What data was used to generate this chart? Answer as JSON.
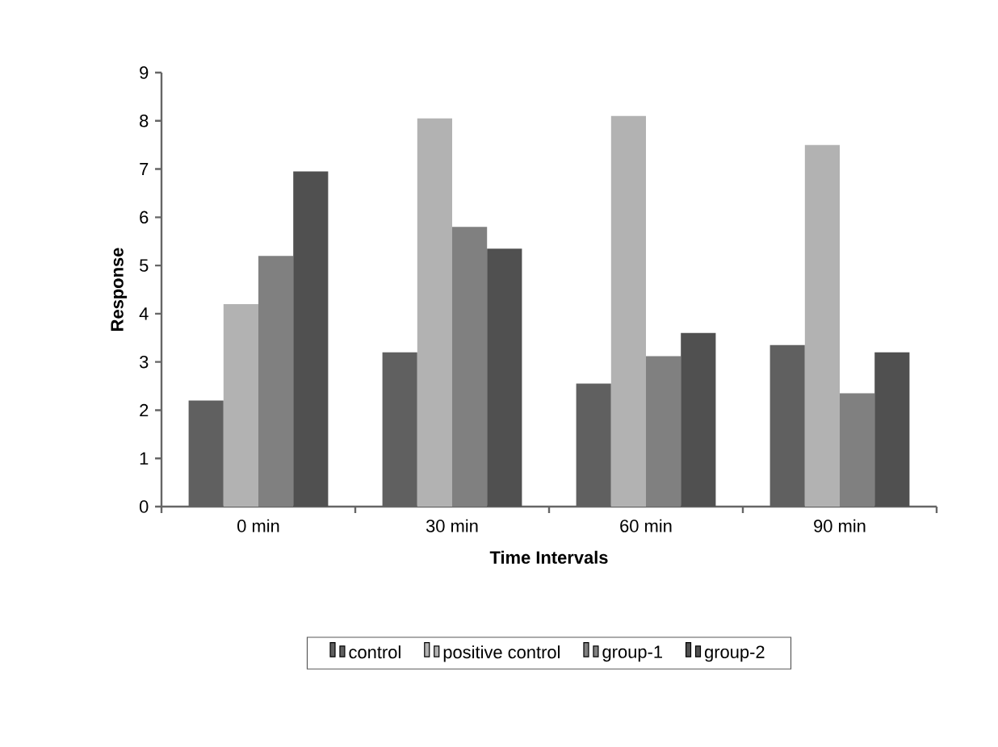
{
  "chart_data": {
    "type": "bar",
    "xlabel": "Time Intervals",
    "ylabel": "Response",
    "categories": [
      "0 min",
      "30 min",
      "60 min",
      "90 min"
    ],
    "series": [
      {
        "name": "control",
        "color": "#606060",
        "values": [
          2.2,
          3.2,
          2.55,
          3.35
        ]
      },
      {
        "name": "positive control",
        "color": "#b2b2b2",
        "values": [
          4.2,
          8.05,
          8.1,
          7.5
        ]
      },
      {
        "name": "group-1",
        "color": "#808080",
        "values": [
          5.2,
          5.8,
          3.12,
          2.35
        ]
      },
      {
        "name": "group-2",
        "color": "#505050",
        "values": [
          6.95,
          5.35,
          3.6,
          3.2
        ]
      }
    ],
    "ylim": [
      0,
      9
    ],
    "yticks": [
      0,
      1,
      2,
      3,
      4,
      5,
      6,
      7,
      8,
      9
    ],
    "grid": false,
    "legend": "bottom"
  }
}
